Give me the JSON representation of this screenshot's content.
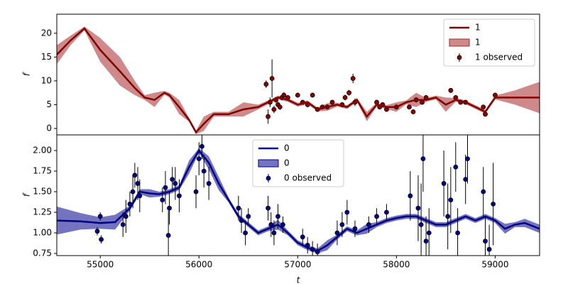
{
  "chart_data": [
    {
      "type": "line",
      "ylabel": "f",
      "legend": "upper right",
      "xlim": [
        54560,
        59450
      ],
      "ylim": [
        -1.35,
        24
      ],
      "yticks": [
        0,
        5,
        10,
        15,
        20
      ],
      "x": [
        54560,
        54700,
        54840,
        55000,
        55200,
        55350,
        55450,
        55550,
        55650,
        55700,
        55800,
        55900,
        55970,
        56050,
        56150,
        56300,
        56450,
        56600,
        56700,
        56800,
        56900,
        57000,
        57100,
        57200,
        57300,
        57400,
        57500,
        57600,
        57700,
        57800,
        57900,
        58000,
        58100,
        58200,
        58300,
        58400,
        58500,
        58600,
        58700,
        58800,
        58900,
        59000,
        59200,
        59450
      ],
      "series": [
        {
          "name": "1",
          "color": "#800000",
          "values": [
            15.5,
            18.5,
            21,
            16.5,
            12,
            8.5,
            6.5,
            6,
            7.5,
            7,
            4.5,
            1.8,
            -0.8,
            1,
            3,
            3,
            4,
            4.5,
            5.5,
            6.5,
            6,
            5,
            5.5,
            4,
            4.5,
            5,
            4.5,
            6,
            2.5,
            5,
            4.5,
            4.5,
            5.5,
            6,
            6,
            6.5,
            5,
            6,
            5.5,
            4.5,
            3.5,
            6.5,
            6.5,
            6.5
          ]
        },
        {
          "name": "1",
          "color": "#a52a2a",
          "lower": [
            13.5,
            17.5,
            20.6,
            14,
            9,
            7,
            6,
            4.5,
            7.1,
            6.5,
            3,
            1.4,
            -1.2,
            -0.5,
            2.5,
            2.5,
            2.5,
            4,
            5.1,
            6.1,
            5.6,
            4.6,
            5.1,
            3.6,
            3.7,
            4.6,
            4.1,
            5.6,
            1.5,
            4.6,
            4.1,
            3.5,
            5.1,
            4.5,
            5.6,
            6.1,
            3.5,
            5.6,
            5.1,
            4.1,
            3.1,
            6.1,
            5,
            3.2
          ],
          "upper": [
            17.5,
            19.5,
            21.4,
            19,
            15,
            10,
            7,
            7.5,
            7.9,
            7.5,
            6,
            2.2,
            -0.4,
            2.5,
            3.5,
            3.5,
            5.5,
            5,
            5.9,
            6.9,
            6.4,
            5.4,
            5.9,
            4.4,
            5.3,
            5.4,
            4.9,
            6.4,
            3.5,
            5.4,
            4.9,
            5.5,
            5.9,
            7.5,
            6.4,
            6.9,
            6.5,
            6.4,
            5.9,
            4.9,
            3.9,
            6.9,
            8,
            9.8
          ]
        },
        {
          "name": "1 observed",
          "color": "#8b0000",
          "x": [
            56680,
            56700,
            56720,
            56740,
            56760,
            56780,
            56800,
            56820,
            56840,
            56860,
            56900,
            57000,
            57050,
            57100,
            57150,
            57200,
            57250,
            57300,
            57350,
            57450,
            57480,
            57520,
            57560,
            57580,
            57800,
            57830,
            57860,
            57900,
            58000,
            58130,
            58170,
            58200,
            58260,
            58300,
            58550,
            58600,
            58650,
            58700,
            58880,
            58900,
            59000
          ],
          "values": [
            9.3,
            2.5,
            5.5,
            10.5,
            4,
            6,
            5,
            4.5,
            6.5,
            7,
            6.5,
            7,
            5.5,
            5,
            7,
            4,
            4.5,
            4.5,
            5.5,
            5,
            6.5,
            7.5,
            10.5,
            5.5,
            5.5,
            4.5,
            5,
            4,
            4.5,
            4.5,
            3.5,
            6,
            5.5,
            6.5,
            8,
            6.5,
            5.5,
            5.5,
            4.5,
            3,
            7
          ],
          "errors": [
            0.8,
            1.5,
            1,
            4,
            0.8,
            0.6,
            0.6,
            0.6,
            0.6,
            0.6,
            0.5,
            0.5,
            0.5,
            0.5,
            0.5,
            0.5,
            0.5,
            0.5,
            0.5,
            0.5,
            0.6,
            0.6,
            1,
            0.8,
            0.5,
            0.5,
            0.5,
            0.5,
            0.5,
            0.5,
            0.5,
            0.5,
            0.5,
            0.5,
            0.5,
            0.5,
            0.5,
            0.5,
            0.5,
            0.5,
            0.5
          ]
        }
      ]
    },
    {
      "type": "line",
      "ylabel": "f",
      "xlabel": "t",
      "legend": "upper center",
      "xlim": [
        54560,
        59450
      ],
      "ylim": [
        0.724,
        2.19
      ],
      "xticks": [
        55000,
        56000,
        57000,
        58000,
        59000
      ],
      "yticks": [
        0.75,
        {
          "value": 1,
          "label": "1.00"
        },
        1.25,
        {
          "value": 1.5,
          "label": "1.50"
        },
        1.75,
        {
          "value": 2,
          "label": "2.00"
        }
      ],
      "x": [
        54560,
        54800,
        55000,
        55150,
        55300,
        55400,
        55500,
        55600,
        55700,
        55800,
        55900,
        56000,
        56100,
        56200,
        56300,
        56400,
        56500,
        56600,
        56700,
        56800,
        56900,
        57000,
        57100,
        57200,
        57300,
        57400,
        57500,
        57600,
        57700,
        57800,
        57900,
        58000,
        58100,
        58200,
        58300,
        58400,
        58500,
        58600,
        58700,
        58800,
        58900,
        59000,
        59100,
        59200,
        59300,
        59450
      ],
      "series": [
        {
          "name": "0",
          "color": "#000080",
          "values": [
            1.15,
            1.14,
            1.12,
            1.13,
            1.3,
            1.5,
            1.48,
            1.47,
            1.5,
            1.55,
            1.8,
            2.0,
            1.85,
            1.6,
            1.4,
            1.2,
            1.1,
            1.0,
            1.05,
            1.1,
            1.0,
            0.88,
            0.82,
            0.78,
            0.85,
            0.95,
            1.05,
            1.0,
            1.05,
            1.1,
            1.15,
            1.18,
            1.2,
            1.2,
            1.15,
            1.1,
            1.1,
            1.15,
            1.2,
            1.15,
            1.2,
            1.15,
            1.05,
            1.1,
            1.12,
            1.05
          ]
        },
        {
          "name": "0",
          "color": "#00008b",
          "lower": [
            0.98,
            1.04,
            1.05,
            1.04,
            1.27,
            1.47,
            1.43,
            1.44,
            1.47,
            1.52,
            1.72,
            1.97,
            1.77,
            1.52,
            1.37,
            1.17,
            1.07,
            0.97,
            1.02,
            1.04,
            0.97,
            0.85,
            0.79,
            0.75,
            0.79,
            0.92,
            1.02,
            0.97,
            0.99,
            1.07,
            1.12,
            1.15,
            1.17,
            1.17,
            1.12,
            1.07,
            1.07,
            1.12,
            1.17,
            1.12,
            1.17,
            1.12,
            0.99,
            1.07,
            1.07,
            1.0
          ],
          "upper": [
            1.32,
            1.24,
            1.19,
            1.22,
            1.33,
            1.53,
            1.53,
            1.5,
            1.53,
            1.58,
            1.88,
            2.03,
            1.93,
            1.68,
            1.43,
            1.23,
            1.13,
            1.03,
            1.08,
            1.16,
            1.03,
            0.91,
            0.85,
            0.81,
            0.91,
            0.98,
            1.08,
            1.03,
            1.11,
            1.13,
            1.18,
            1.21,
            1.23,
            1.23,
            1.18,
            1.13,
            1.13,
            1.18,
            1.23,
            1.18,
            1.23,
            1.18,
            1.11,
            1.13,
            1.17,
            1.1
          ]
        },
        {
          "name": "0 observed",
          "color": "#00008b",
          "x": [
            54970,
            55000,
            55010,
            55230,
            55260,
            55300,
            55330,
            55350,
            55380,
            55400,
            55630,
            55660,
            55690,
            55700,
            55730,
            55760,
            55800,
            55970,
            56000,
            56030,
            56050,
            56100,
            56400,
            56430,
            56470,
            56500,
            56700,
            56730,
            56760,
            56800,
            56850,
            57050,
            57100,
            57150,
            57200,
            57400,
            57450,
            57500,
            57580,
            57720,
            57800,
            57900,
            58140,
            58220,
            58250,
            58270,
            58300,
            58330,
            58480,
            58520,
            58550,
            58600,
            58620,
            58700,
            58720,
            58880,
            58900,
            58940,
            58980
          ],
          "values": [
            1.02,
            1.2,
            0.92,
            1.1,
            1.2,
            1.35,
            1.5,
            1.7,
            1.6,
            1.45,
            1.4,
            1.55,
            0.97,
            1.3,
            1.65,
            1.6,
            1.45,
            1.5,
            1.9,
            2.05,
            1.75,
            1.6,
            1.3,
            1.15,
            1.0,
            1.2,
            1.3,
            1.1,
            1.0,
            1.2,
            1.1,
            0.95,
            0.85,
            0.8,
            0.77,
            1.0,
            1.1,
            1.25,
            1.05,
            1.1,
            1.2,
            1.25,
            1.45,
            1.3,
            1.1,
            1.9,
            0.9,
            1.0,
            1.6,
            1.2,
            1.4,
            1.8,
            1.0,
            1.65,
            1.9,
            1.5,
            0.9,
            0.8,
            1.35
          ],
          "errors": [
            0.05,
            0.05,
            0.05,
            0.15,
            0.2,
            0.15,
            0.2,
            0.15,
            0.2,
            0.2,
            0.15,
            0.2,
            0.3,
            0.2,
            0.15,
            0.2,
            0.2,
            0.2,
            0.2,
            0.15,
            0.2,
            0.2,
            0.15,
            0.15,
            0.15,
            0.1,
            0.15,
            0.15,
            0.15,
            0.15,
            0.1,
            0.1,
            0.1,
            0.1,
            0.1,
            0.15,
            0.15,
            0.15,
            0.1,
            0.1,
            0.1,
            0.1,
            0.3,
            0.4,
            0.5,
            0.4,
            0.3,
            0.3,
            0.4,
            0.4,
            0.4,
            0.3,
            0.3,
            0.3,
            0.3,
            0.3,
            0.3,
            0.3,
            0.5
          ]
        }
      ]
    }
  ]
}
